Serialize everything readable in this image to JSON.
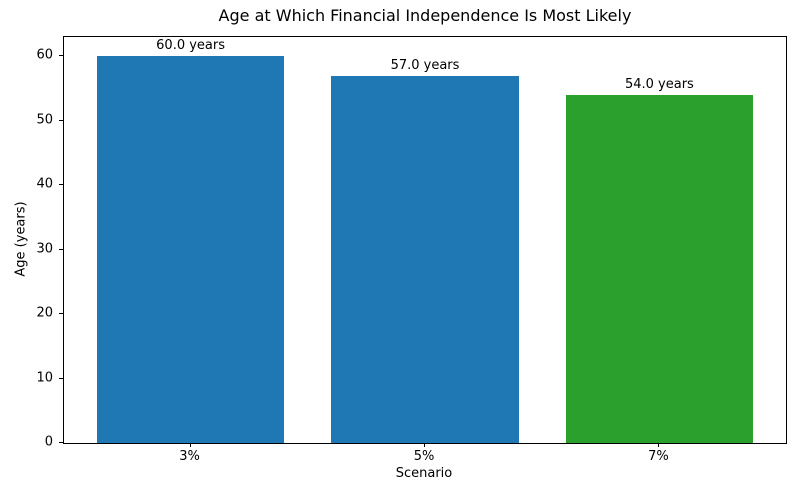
{
  "chart_data": {
    "type": "bar",
    "title": "Age at Which Financial Independence Is Most Likely",
    "xlabel": "Scenario",
    "ylabel": "Age (years)",
    "categories": [
      "3%",
      "5%",
      "7%"
    ],
    "values": [
      60.0,
      57.0,
      54.0
    ],
    "bar_labels": [
      "60.0 years",
      "57.0 years",
      "54.0 years"
    ],
    "bar_colors": [
      "#1f77b4",
      "#1f77b4",
      "#2ca02c"
    ],
    "yticks": [
      0,
      10,
      20,
      30,
      40,
      50,
      60
    ],
    "ylim": [
      0,
      63
    ],
    "xlim": [
      -0.54,
      2.54
    ],
    "x_positions": [
      0,
      1,
      2
    ],
    "bar_width": 0.8,
    "grid": false,
    "legend": "none",
    "background_color": "#ffffff",
    "text_color": "#000000"
  }
}
